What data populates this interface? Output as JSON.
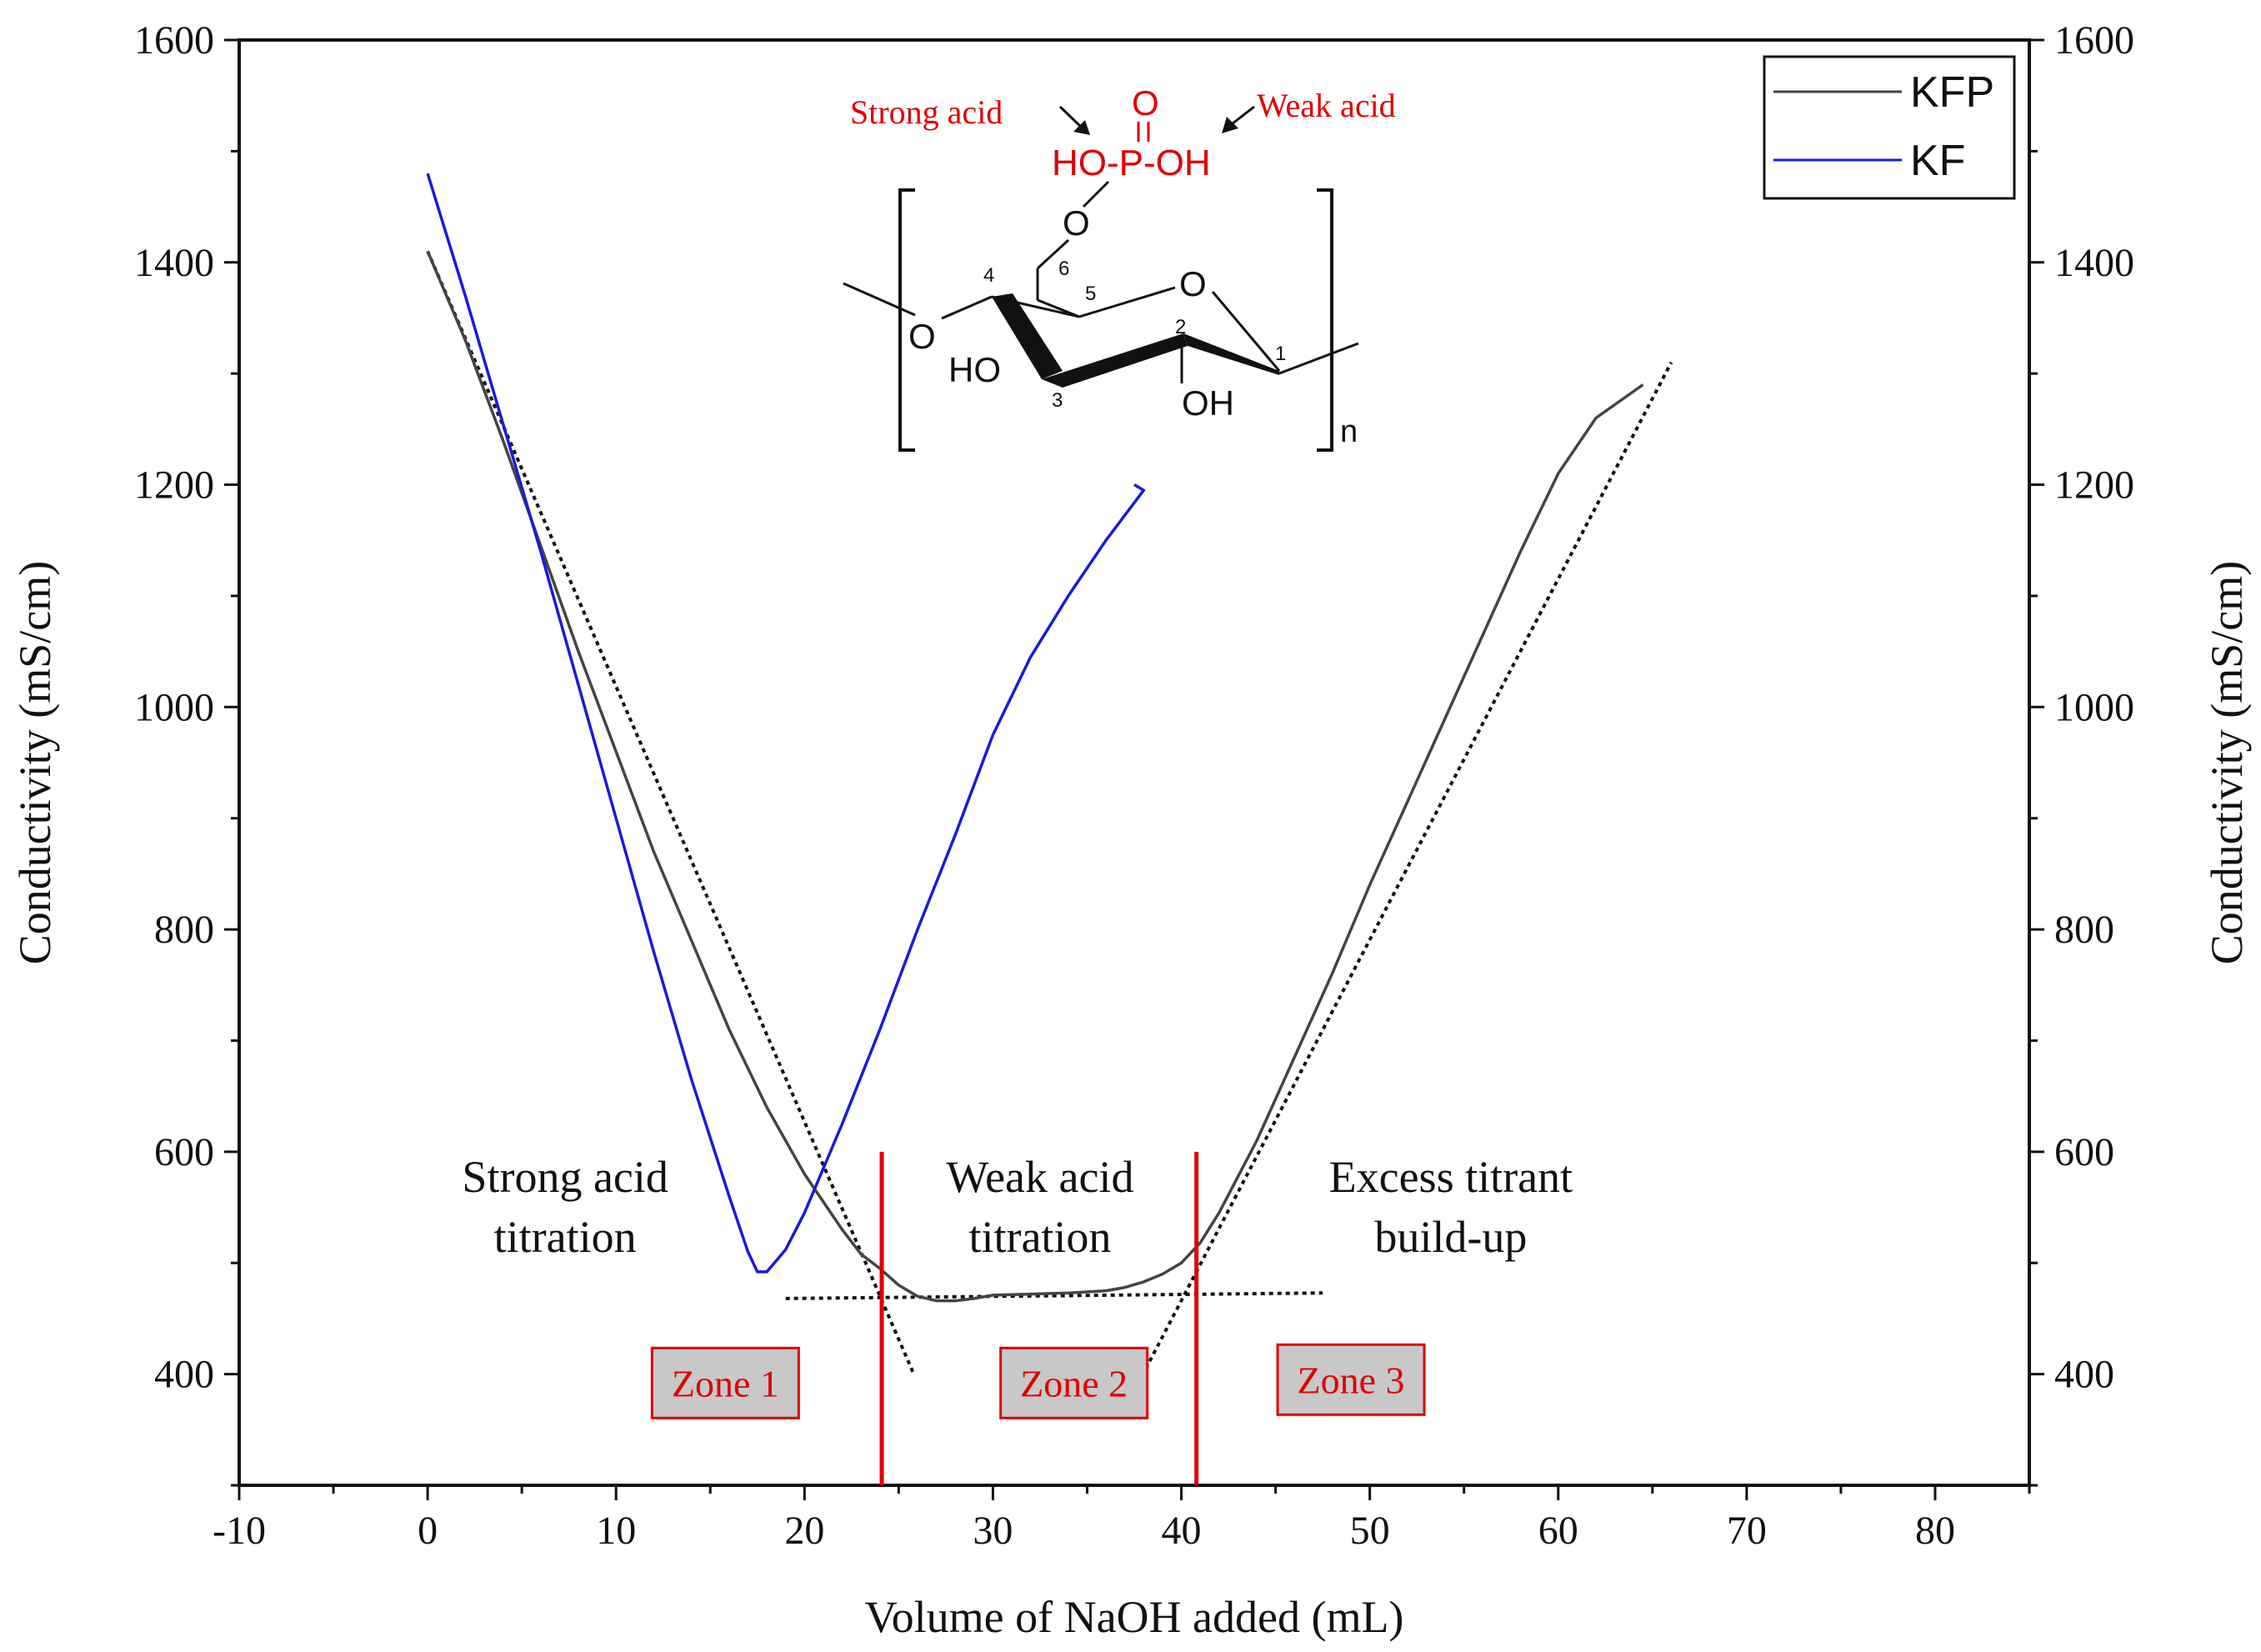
{
  "chart_data": {
    "type": "line",
    "xlabel": "Volume of NaOH added (mL)",
    "ylabel_left": "Conductivity (mS/cm)",
    "ylabel_right": "Conductivity (mS/cm)",
    "xlim": [
      -10,
      85
    ],
    "ylim": [
      300,
      1600
    ],
    "x_ticks": [
      -10,
      0,
      10,
      20,
      30,
      40,
      50,
      60,
      70,
      80
    ],
    "y_ticks": [
      400,
      600,
      800,
      1000,
      1200,
      1400,
      1600
    ],
    "legend": {
      "placement": "top-right"
    },
    "series": [
      {
        "name": "KFP",
        "color": "#444444",
        "x": [
          0,
          2,
          4,
          6,
          8,
          10,
          12,
          14,
          16,
          18,
          20,
          21,
          22,
          23,
          24,
          25,
          26,
          27,
          28,
          29,
          30,
          32,
          34,
          36,
          37,
          38,
          39,
          40,
          41,
          42,
          44,
          46,
          48,
          50,
          52,
          54,
          56,
          58,
          60,
          62,
          64.5
        ],
        "y": [
          1410,
          1330,
          1240,
          1145,
          1050,
          960,
          870,
          790,
          710,
          640,
          580,
          555,
          530,
          508,
          495,
          480,
          470,
          466,
          466,
          468,
          471,
          472,
          473,
          475,
          478,
          483,
          490,
          500,
          518,
          545,
          610,
          685,
          760,
          840,
          915,
          990,
          1065,
          1140,
          1210,
          1260,
          1290
        ]
      },
      {
        "name": "KF",
        "color": "#1a1adb",
        "x": [
          0,
          2,
          4,
          6,
          8,
          10,
          12,
          14,
          16,
          17,
          17.5,
          18,
          19,
          20,
          22,
          24,
          26,
          28,
          30,
          32,
          34,
          36,
          38,
          37.5
        ],
        "y": [
          1480,
          1370,
          1255,
          1140,
          1020,
          900,
          780,
          665,
          560,
          510,
          492,
          492,
          512,
          545,
          625,
          710,
          800,
          885,
          975,
          1045,
          1100,
          1150,
          1195,
          1200
        ]
      }
    ],
    "tangent_lines": [
      {
        "x": [
          0,
          25.8
        ],
        "y": [
          1410,
          400
        ]
      },
      {
        "x": [
          19,
          47.5
        ],
        "y": [
          468,
          473
        ]
      },
      {
        "x": [
          37.5,
          66
        ],
        "y": [
          385,
          1310
        ]
      }
    ],
    "zone_boundaries": [
      24.1,
      40.8
    ],
    "region_labels": [
      {
        "lines": [
          "Strong acid",
          "titration"
        ],
        "x": 7.3,
        "y": 585
      },
      {
        "lines": [
          "Weak acid",
          "titration"
        ],
        "x": 32.5,
        "y": 585
      },
      {
        "lines": [
          "Excess titrant",
          "build-up"
        ],
        "x": 54.3,
        "y": 585
      }
    ],
    "zones": [
      {
        "label": "Zone 1",
        "x": 15.8,
        "y": 392
      },
      {
        "label": "Zone 2",
        "x": 34.3,
        "y": 392
      },
      {
        "label": "Zone 3",
        "x": 49,
        "y": 395
      }
    ]
  },
  "structure": {
    "strong_acid_label": "Strong acid",
    "weak_acid_label": "Weak acid",
    "p_o": "O",
    "p_chain": "HO-P-OH",
    "o6": "O",
    "ring_o": "O",
    "o_left": "O",
    "ho3": "HO",
    "oh2": "OH",
    "n4": "4",
    "n6": "6",
    "n5": "5",
    "n2": "2",
    "n3": "3",
    "n1": "1",
    "subscript": "n"
  }
}
